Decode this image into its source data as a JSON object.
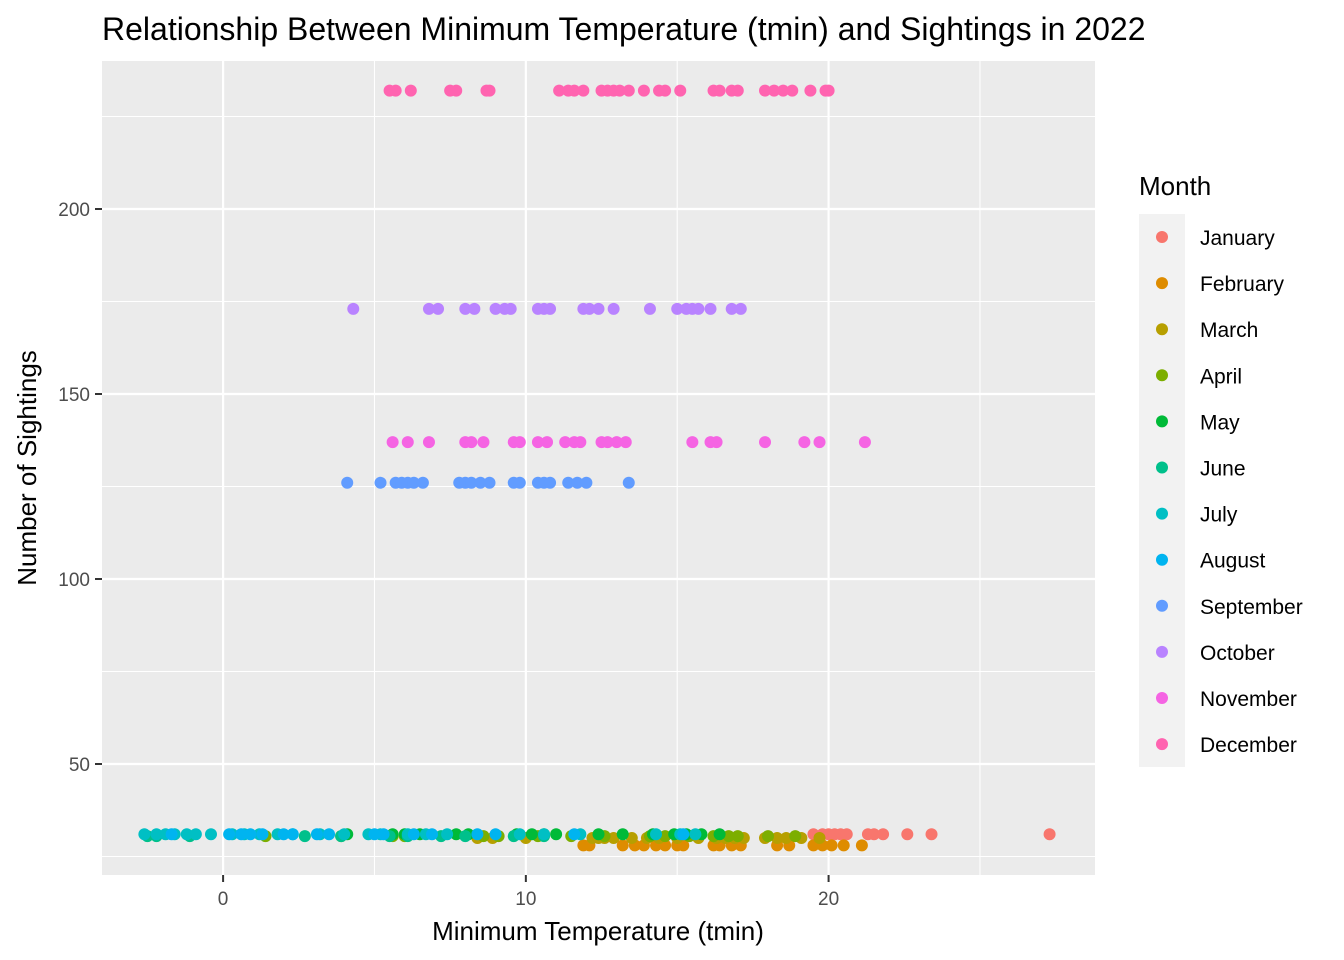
{
  "chart_data": {
    "type": "scatter",
    "title": "Relationship Between Minimum Temperature (tmin) and Sightings in 2022",
    "xlabel": "Minimum Temperature (tmin)",
    "ylabel": "Number of Sightings",
    "xlim": [
      -4,
      28.8
    ],
    "ylim": [
      20,
      240
    ],
    "x_ticks": [
      0,
      10,
      20
    ],
    "y_ticks": [
      50,
      100,
      150,
      200
    ],
    "grid": true,
    "legend": {
      "title": "Month",
      "position": "right"
    },
    "series": [
      {
        "name": "January",
        "color": "#F8766D",
        "y": 31,
        "x": [
          19.5,
          19.8,
          20.0,
          20.2,
          20.4,
          20.6,
          21.3,
          21.5,
          21.8,
          22.6,
          23.4,
          27.3
        ]
      },
      {
        "name": "February",
        "color": "#DE8C00",
        "y": 28,
        "x": [
          11.9,
          12.1,
          13.2,
          13.6,
          13.9,
          14.3,
          14.6,
          15.0,
          15.2,
          16.2,
          16.4,
          16.8,
          17.1,
          18.3,
          18.7,
          19.5,
          19.8,
          20.1,
          20.5,
          21.1
        ]
      },
      {
        "name": "March",
        "color": "#B79F00",
        "y": 30,
        "x": [
          8.4,
          8.9,
          10.0,
          12.2,
          12.4,
          12.6,
          12.9,
          13.5,
          14.0,
          14.4,
          15.0,
          15.7,
          16.3,
          16.6,
          16.9,
          17.2,
          17.9,
          18.3,
          18.6,
          19.1,
          19.7
        ]
      },
      {
        "name": "April",
        "color": "#7CAE00",
        "y": 30.5,
        "x": [
          1.4,
          3.9,
          5.6,
          6.0,
          8.6,
          9.1,
          10.4,
          11.5,
          12.6,
          14.1,
          14.6,
          15.4,
          16.2,
          16.7,
          17.0,
          18.0,
          18.9
        ]
      },
      {
        "name": "May",
        "color": "#00BA38",
        "y": 31,
        "x": [
          4.1,
          5.6,
          6.0,
          6.5,
          7.7,
          8.1,
          9.7,
          10.2,
          10.6,
          11.0,
          12.4,
          13.2,
          14.2,
          14.9,
          15.3,
          15.8,
          16.4
        ]
      },
      {
        "name": "June",
        "color": "#00C08B",
        "y": 30.5,
        "x": [
          -2.5,
          -2.2,
          -1.1,
          2.7,
          3.9,
          5.5,
          6.1,
          7.2,
          8.0,
          9.6,
          10.6
        ]
      },
      {
        "name": "July",
        "color": "#00BFC4",
        "y": 31,
        "x": [
          -2.6,
          -2.2,
          -1.9,
          -1.6,
          -1.2,
          -0.9,
          -0.4,
          0.3,
          0.7,
          1.2,
          1.8,
          2.3,
          3.2,
          4.0,
          4.8,
          5.2,
          6.1,
          6.7,
          7.4,
          9.8,
          10.6,
          11.8,
          14.3,
          15.1,
          15.6
        ]
      },
      {
        "name": "August",
        "color": "#00B4F0",
        "y": 31,
        "x": [
          -1.7,
          0.2,
          0.6,
          0.9,
          1.3,
          2.0,
          2.3,
          3.1,
          3.5,
          5.0,
          5.3,
          6.3,
          6.9,
          8.4,
          9.0,
          11.6,
          15.2
        ]
      },
      {
        "name": "September",
        "color": "#619CFF",
        "y": 126,
        "x": [
          4.1,
          5.2,
          5.7,
          5.9,
          6.1,
          6.3,
          6.6,
          7.8,
          8.0,
          8.2,
          8.5,
          8.8,
          9.6,
          9.8,
          10.4,
          10.6,
          10.8,
          11.4,
          11.7,
          12.0,
          13.4
        ]
      },
      {
        "name": "October",
        "color": "#B983FF",
        "y": 173,
        "x": [
          4.3,
          6.8,
          7.1,
          8.0,
          8.3,
          9.0,
          9.3,
          9.5,
          10.4,
          10.6,
          10.8,
          11.9,
          12.1,
          12.4,
          12.9,
          14.1,
          15.0,
          15.3,
          15.5,
          15.7,
          16.1,
          16.8,
          17.1
        ]
      },
      {
        "name": "November",
        "color": "#F564E3",
        "y": 137,
        "x": [
          5.6,
          6.1,
          6.8,
          8.0,
          8.2,
          8.6,
          9.6,
          9.8,
          10.4,
          10.7,
          11.3,
          11.6,
          11.8,
          12.5,
          12.7,
          13.0,
          13.3,
          15.5,
          16.1,
          16.3,
          17.9,
          19.2,
          19.7,
          21.2
        ]
      },
      {
        "name": "December",
        "color": "#FF64B0",
        "y": 232,
        "x": [
          5.5,
          5.7,
          6.2,
          7.5,
          7.7,
          8.7,
          8.8,
          11.1,
          11.4,
          11.6,
          11.9,
          12.5,
          12.7,
          12.9,
          13.1,
          13.4,
          13.9,
          14.4,
          14.6,
          15.1,
          16.2,
          16.4,
          16.8,
          17.0,
          17.9,
          18.2,
          18.5,
          18.8,
          19.4,
          19.9,
          20.0
        ]
      }
    ]
  }
}
